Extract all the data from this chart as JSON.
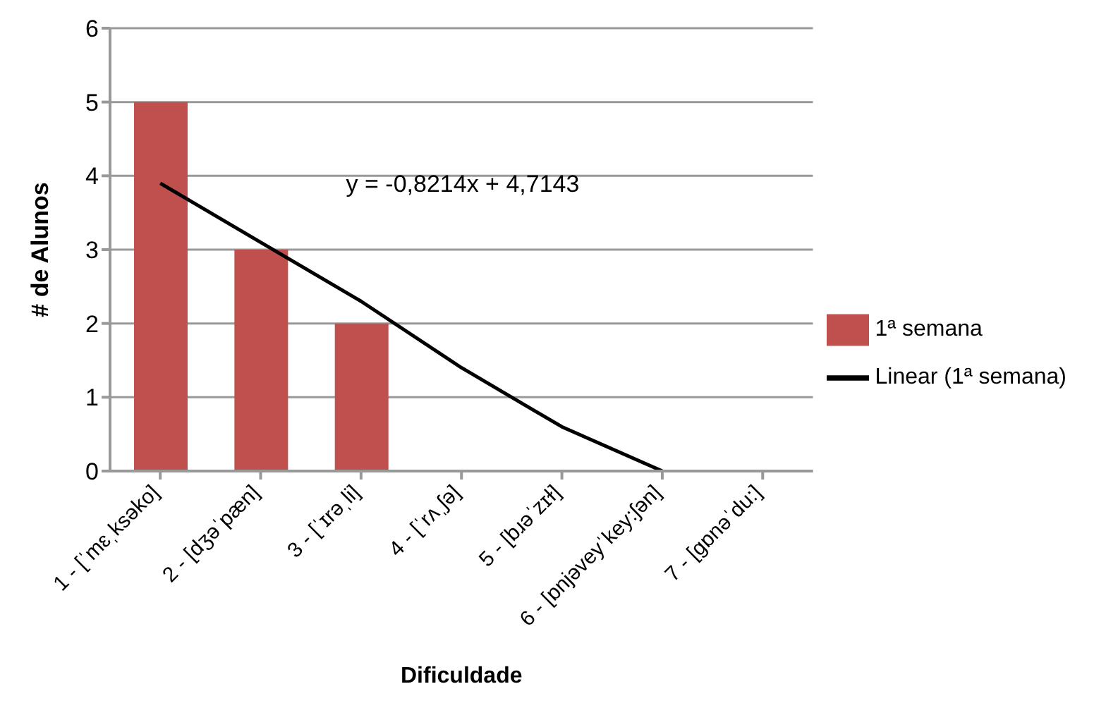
{
  "chart_data": {
    "type": "bar",
    "xlabel": "Dificuldade",
    "ylabel": "# de Alunos",
    "categories": [
      "1 - [ˈmɛˌksəko]",
      "2 - [dʒəˈpæn]",
      "3 - [ˈɪrəˌli]",
      "4 - [ˈrʌˌʃə]",
      "5 - [bɹəˈzɪɫ]",
      "6 - [ɒnjəveyˈkey:ʃən]",
      "7 - [gɒnəˈdu:]"
    ],
    "series": [
      {
        "name": "1ª semana",
        "color": "#c0504d",
        "values": [
          5,
          3,
          2,
          0,
          0,
          0,
          0
        ]
      },
      {
        "name": "Linear (1ª semana)",
        "type": "line",
        "color": "#000000",
        "values": [
          3.9,
          3.1,
          2.3,
          1.4,
          0.6,
          0,
          null
        ]
      }
    ],
    "annotations": [
      "y = -0,8214x + 4,7143"
    ],
    "ylim": [
      0,
      6
    ],
    "yticks": [
      0,
      1,
      2,
      3,
      4,
      5,
      6
    ],
    "grid": "y",
    "legend": "right",
    "marker": "none"
  }
}
